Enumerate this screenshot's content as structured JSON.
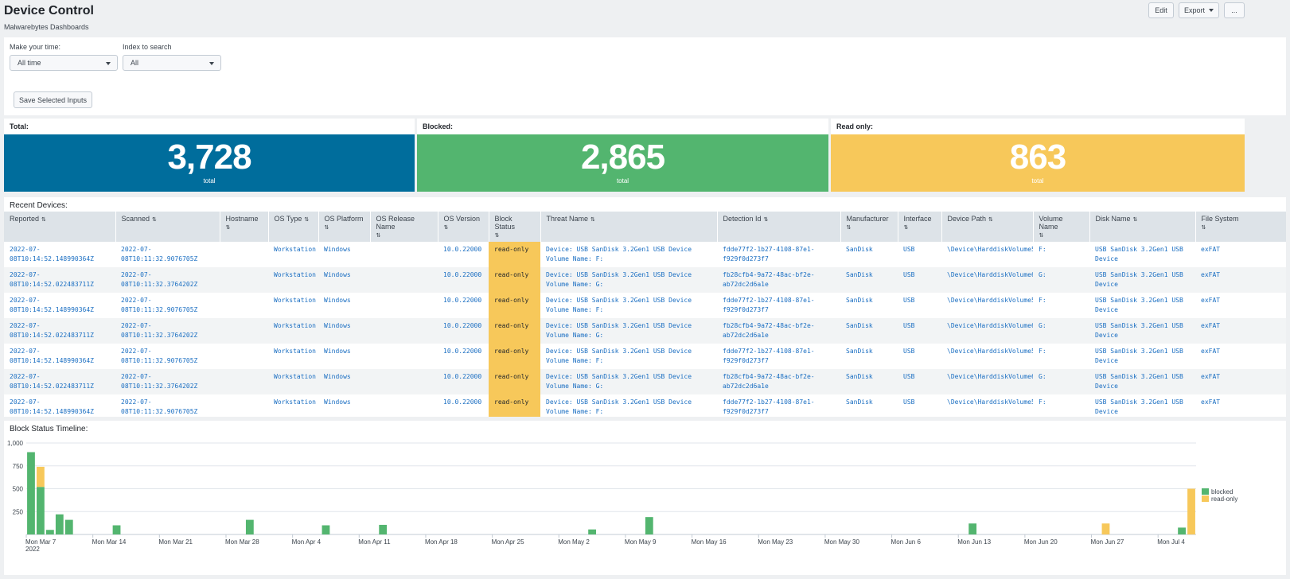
{
  "header": {
    "title": "Device Control",
    "subtitle": "Malwarebytes Dashboards",
    "edit_label": "Edit",
    "export_label": "Export",
    "more_label": "..."
  },
  "inputs": {
    "time_label": "Make your time:",
    "time_value": "All time",
    "index_label": "Index to search",
    "index_value": "All",
    "save_label": "Save Selected Inputs"
  },
  "stats": [
    {
      "label": "Total:",
      "value": "3,728",
      "sub": "total",
      "color": "#006d9c"
    },
    {
      "label": "Blocked:",
      "value": "2,865",
      "sub": "total",
      "color": "#53b56f"
    },
    {
      "label": "Read only:",
      "value": "863",
      "sub": "total",
      "color": "#f7c85a"
    }
  ],
  "devices": {
    "title": "Recent Devices:",
    "columns": [
      "Reported",
      "Scanned",
      "Hostname",
      "OS Type",
      "OS Platform",
      "OS Release Name",
      "OS Version",
      "Block Status",
      "Threat Name",
      "Detection Id",
      "Manufacturer",
      "Interface",
      "Device Path",
      "Volume Name",
      "Disk Name",
      "File System"
    ],
    "rows": [
      {
        "reported": "2022-07-08T10:14:52.148990364Z",
        "scanned": "2022-07-08T10:11:32.9076705Z",
        "hostname": "",
        "os_type": "Workstation",
        "os_platform": "Windows",
        "os_release": "",
        "os_version": "10.0.22000",
        "block_status": "read-only",
        "threat": "Device: USB  SanDisk 3.2Gen1 USB Device Volume Name: F:",
        "detection": "fdde77f2-1b27-4108-87e1-f929f0d273f7",
        "manufacturer": "SanDisk",
        "interface": "USB",
        "device_path": "\\Device\\HarddiskVolume5",
        "volume": "F:",
        "disk": "USB  SanDisk 3.2Gen1 USB Device",
        "fs": "exFAT"
      },
      {
        "reported": "2022-07-08T10:14:52.022483711Z",
        "scanned": "2022-07-08T10:11:32.3764202Z",
        "hostname": "",
        "os_type": "Workstation",
        "os_platform": "Windows",
        "os_release": "",
        "os_version": "10.0.22000",
        "block_status": "read-only",
        "threat": "Device: USB  SanDisk 3.2Gen1 USB Device Volume Name: G:",
        "detection": "fb28cfb4-9a72-48ac-bf2e-ab72dc2d6a1e",
        "manufacturer": "SanDisk",
        "interface": "USB",
        "device_path": "\\Device\\HarddiskVolume6",
        "volume": "G:",
        "disk": "USB  SanDisk 3.2Gen1 USB Device",
        "fs": "exFAT"
      },
      {
        "reported": "2022-07-08T10:14:52.148990364Z",
        "scanned": "2022-07-08T10:11:32.9076705Z",
        "hostname": "",
        "os_type": "Workstation",
        "os_platform": "Windows",
        "os_release": "",
        "os_version": "10.0.22000",
        "block_status": "read-only",
        "threat": "Device: USB  SanDisk 3.2Gen1 USB Device Volume Name: F:",
        "detection": "fdde77f2-1b27-4108-87e1-f929f0d273f7",
        "manufacturer": "SanDisk",
        "interface": "USB",
        "device_path": "\\Device\\HarddiskVolume5",
        "volume": "F:",
        "disk": "USB  SanDisk 3.2Gen1 USB Device",
        "fs": "exFAT"
      },
      {
        "reported": "2022-07-08T10:14:52.022483711Z",
        "scanned": "2022-07-08T10:11:32.3764202Z",
        "hostname": "",
        "os_type": "Workstation",
        "os_platform": "Windows",
        "os_release": "",
        "os_version": "10.0.22000",
        "block_status": "read-only",
        "threat": "Device: USB  SanDisk 3.2Gen1 USB Device Volume Name: G:",
        "detection": "fb28cfb4-9a72-48ac-bf2e-ab72dc2d6a1e",
        "manufacturer": "SanDisk",
        "interface": "USB",
        "device_path": "\\Device\\HarddiskVolume6",
        "volume": "G:",
        "disk": "USB  SanDisk 3.2Gen1 USB Device",
        "fs": "exFAT"
      },
      {
        "reported": "2022-07-08T10:14:52.148990364Z",
        "scanned": "2022-07-08T10:11:32.9076705Z",
        "hostname": "",
        "os_type": "Workstation",
        "os_platform": "Windows",
        "os_release": "",
        "os_version": "10.0.22000",
        "block_status": "read-only",
        "threat": "Device: USB  SanDisk 3.2Gen1 USB Device Volume Name: F:",
        "detection": "fdde77f2-1b27-4108-87e1-f929f0d273f7",
        "manufacturer": "SanDisk",
        "interface": "USB",
        "device_path": "\\Device\\HarddiskVolume5",
        "volume": "F:",
        "disk": "USB  SanDisk 3.2Gen1 USB Device",
        "fs": "exFAT"
      },
      {
        "reported": "2022-07-08T10:14:52.022483711Z",
        "scanned": "2022-07-08T10:11:32.3764202Z",
        "hostname": "",
        "os_type": "Workstation",
        "os_platform": "Windows",
        "os_release": "",
        "os_version": "10.0.22000",
        "block_status": "read-only",
        "threat": "Device: USB  SanDisk 3.2Gen1 USB Device Volume Name: G:",
        "detection": "fb28cfb4-9a72-48ac-bf2e-ab72dc2d6a1e",
        "manufacturer": "SanDisk",
        "interface": "USB",
        "device_path": "\\Device\\HarddiskVolume6",
        "volume": "G:",
        "disk": "USB  SanDisk 3.2Gen1 USB Device",
        "fs": "exFAT"
      },
      {
        "reported": "2022-07-08T10:14:52.148990364Z",
        "scanned": "2022-07-08T10:11:32.9076705Z",
        "hostname": "",
        "os_type": "Workstation",
        "os_platform": "Windows",
        "os_release": "",
        "os_version": "10.0.22000",
        "block_status": "read-only",
        "threat": "Device: USB  SanDisk 3.2Gen1 USB Device Volume Name: F:",
        "detection": "fdde77f2-1b27-4108-87e1-f929f0d273f7",
        "manufacturer": "SanDisk",
        "interface": "USB",
        "device_path": "\\Device\\HarddiskVolume5",
        "volume": "F:",
        "disk": "USB  SanDisk 3.2Gen1 USB Device",
        "fs": "exFAT"
      }
    ]
  },
  "timeline": {
    "title": "Block Status Timeline:"
  },
  "chart_data": {
    "type": "bar",
    "stacked": true,
    "x_ticks": [
      "Mon Mar 7\n2022",
      "Mon Mar 14",
      "Mon Mar 21",
      "Mon Mar 28",
      "Mon Apr 4",
      "Mon Apr 11",
      "Mon Apr 18",
      "Mon Apr 25",
      "Mon May 2",
      "Mon May 9",
      "Mon May 16",
      "Mon May 23",
      "Mon May 30",
      "Mon Jun 6",
      "Mon Jun 13",
      "Mon Jun 20",
      "Mon Jun 27",
      "Mon Jul 4"
    ],
    "y_ticks": [
      "250",
      "500",
      "750",
      "1,000"
    ],
    "ylim": [
      0,
      1000
    ],
    "legend_position": "right",
    "series": [
      {
        "name": "blocked",
        "color": "#53b56f",
        "points": [
          {
            "date": "2022-03-07",
            "value": 900
          },
          {
            "date": "2022-03-08",
            "value": 520
          },
          {
            "date": "2022-03-09",
            "value": 50
          },
          {
            "date": "2022-03-10",
            "value": 220
          },
          {
            "date": "2022-03-11",
            "value": 160
          },
          {
            "date": "2022-03-16",
            "value": 100
          },
          {
            "date": "2022-03-30",
            "value": 160
          },
          {
            "date": "2022-04-07",
            "value": 100
          },
          {
            "date": "2022-04-13",
            "value": 105
          },
          {
            "date": "2022-05-05",
            "value": 55
          },
          {
            "date": "2022-05-11",
            "value": 190
          },
          {
            "date": "2022-06-14",
            "value": 120
          },
          {
            "date": "2022-07-06",
            "value": 75
          }
        ]
      },
      {
        "name": "read-only",
        "color": "#f7c85a",
        "points": [
          {
            "date": "2022-03-08",
            "value": 220
          },
          {
            "date": "2022-06-28",
            "value": 120
          },
          {
            "date": "2022-07-07",
            "value": 500
          }
        ]
      }
    ]
  }
}
